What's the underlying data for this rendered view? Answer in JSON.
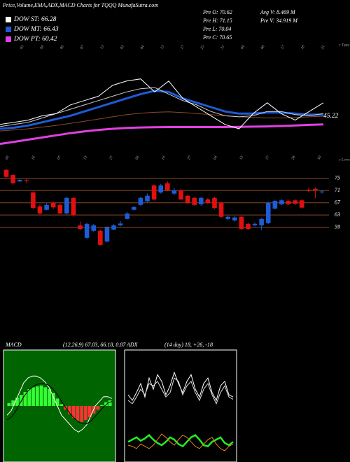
{
  "header": {
    "title": "Price,Volume,EMA,ADX,MACD Charts for TQQQ MunafaSutra.com",
    "legend": [
      {
        "label": "DOW ST: 66.28",
        "color": "#ffffff"
      },
      {
        "label": "DOW MT: 66.43",
        "color": "#1e5bd6"
      },
      {
        "label": "DOW PT: 60.42",
        "color": "#e040e0"
      }
    ],
    "info": [
      "Pre O: 70.62",
      "Pre H: 71.15",
      "Pre L: 70.04",
      "Pre C: 70.65",
      "Avg V: 8.469 M",
      "Pre V: 34.919 M"
    ]
  },
  "chart_data": [
    {
      "type": "line",
      "corner_label": "c Tqqq",
      "last_label": "45.22",
      "ylim": [
        30,
        80
      ],
      "date_labels": [
        "03",
        "04",
        "06",
        "07",
        "13",
        "03",
        "04",
        "13",
        "17",
        "25",
        "31",
        "04",
        "08",
        "17",
        "18",
        "21"
      ],
      "series": [
        {
          "color": "#e040e0",
          "values": [
            33,
            34,
            35,
            36,
            37,
            38,
            38.8,
            39.5,
            40,
            40.4,
            40.6,
            40.7,
            40.8,
            40.8,
            40.8,
            40.8,
            40.8,
            40.9,
            41,
            41.1,
            41.3,
            41.5,
            41.8,
            42
          ]
        },
        {
          "color": "#8b4a2a",
          "values": [
            39,
            39.5,
            40,
            40.8,
            41.5,
            42.5,
            43.5,
            44.5,
            45.5,
            46.5,
            47.2,
            47.6,
            47.8,
            47.5,
            47,
            46.5,
            46,
            45.5,
            45.2,
            45,
            45,
            45.2,
            45.5,
            45.8
          ]
        },
        {
          "color": "#1e5bd6",
          "values": [
            40,
            40.5,
            41.5,
            43,
            44.5,
            46,
            48,
            50,
            52,
            54,
            56,
            57.5,
            57,
            54,
            52,
            50,
            48,
            47,
            47,
            47.5,
            47.5,
            47,
            46.5,
            46.5
          ]
        },
        {
          "color": "#cccccc",
          "values": [
            41,
            42,
            43,
            45,
            47,
            49,
            51,
            53,
            55,
            57,
            58.5,
            59,
            56,
            53,
            51,
            48,
            46,
            45.5,
            46,
            48,
            48,
            46.5,
            46,
            47
          ]
        },
        {
          "color": "#ffffff",
          "values": [
            42,
            43,
            44,
            46,
            47,
            51,
            53,
            55,
            60,
            62,
            63,
            57,
            62,
            54,
            50,
            46,
            42,
            40,
            47,
            52,
            47,
            44,
            48,
            52
          ]
        }
      ]
    },
    {
      "type": "candlestick",
      "corner_label": "c Lowest",
      "ylim": [
        32.5,
        80.7
      ],
      "yticks": [
        75,
        71,
        67,
        63,
        59
      ],
      "grid_color": "#8b4a2a",
      "up_color": "#1e5bd6",
      "down_color": "#e01010",
      "date_labels": [
        "09",
        "16",
        "07",
        "13",
        "27",
        "04",
        "14",
        "27",
        "04",
        "13",
        "17",
        "28",
        "30"
      ],
      "open": [
        77.8,
        76.1,
        74.0,
        74.4,
        70.4,
        65.8,
        64.7,
        67.0,
        66.3,
        63.5,
        68.6,
        59.6,
        55.5,
        57.8,
        57.8,
        54.3,
        58.2,
        59.6,
        61.7,
        64.7,
        66.3,
        67.5,
        72.7,
        70.4,
        73.4,
        70.0,
        71.1,
        69.3,
        68.6,
        66.5,
        68.1,
        68.6,
        67.0,
        61.7,
        61.2,
        62.4,
        60.1,
        59.6,
        59.6,
        60.3,
        65.1,
        66.5,
        67.6,
        67.8,
        67.8,
        71.3,
        71.6,
        70.6
      ],
      "high": [
        78.2,
        76.5,
        74.8,
        75.0,
        70.8,
        66.5,
        66.8,
        67.4,
        66.8,
        69.0,
        69.0,
        60.8,
        60.5,
        60.0,
        58.2,
        59.3,
        60.0,
        61.0,
        64.0,
        66.0,
        69.0,
        70.0,
        73.0,
        73.2,
        74.0,
        71.8,
        71.6,
        69.8,
        69.0,
        69.0,
        68.6,
        69.0,
        67.4,
        62.8,
        62.6,
        62.8,
        60.5,
        60.6,
        62.0,
        67.4,
        68.0,
        68.2,
        68.0,
        68.2,
        68.2,
        72.0,
        72.0,
        71.2
      ],
      "low": [
        75.0,
        73.0,
        73.8,
        73.5,
        65.0,
        63.0,
        64.5,
        65.0,
        63.2,
        63.2,
        62.5,
        58.0,
        55.0,
        57.5,
        53.0,
        54.0,
        58.0,
        59.3,
        61.5,
        64.5,
        66.0,
        67.2,
        67.8,
        70.0,
        70.8,
        69.6,
        67.8,
        66.6,
        66.0,
        66.0,
        66.6,
        65.0,
        62.0,
        61.4,
        60.8,
        58.0,
        58.0,
        59.2,
        58.0,
        60.0,
        64.8,
        66.2,
        66.2,
        66.3,
        65.1,
        70.5,
        68.5,
        70.0
      ],
      "close": [
        75.5,
        73.4,
        74.5,
        74.2,
        65.3,
        63.5,
        66.3,
        65.5,
        63.5,
        68.6,
        63.0,
        58.4,
        60.1,
        59.6,
        53.2,
        58.9,
        59.6,
        60.2,
        63.5,
        65.6,
        68.6,
        69.3,
        68.1,
        72.7,
        71.1,
        71.1,
        68.1,
        67.0,
        66.3,
        68.6,
        67.0,
        65.3,
        62.4,
        62.4,
        62.2,
        58.4,
        58.4,
        60.1,
        61.7,
        67.0,
        67.6,
        67.8,
        66.5,
        66.7,
        65.4,
        71.1,
        71.2,
        70.7
      ]
    },
    {
      "type": "macd",
      "title": "MACD",
      "subtitle": "(12,26,9) 67.03, 66.18, 0.87",
      "ylim": [
        -6,
        6
      ],
      "background": "#006400",
      "up_color": "#33ff33",
      "down_color": "#ff3333",
      "histogram": [
        0.3,
        0.6,
        0.9,
        1.2,
        1.5,
        1.8,
        2.0,
        2.1,
        2.2,
        2.0,
        1.8,
        1.4,
        0.8,
        0.2,
        -0.4,
        -0.9,
        -1.3,
        -1.6,
        -1.7,
        -1.5,
        -1.2,
        -0.8,
        -0.4,
        0.1,
        0.4,
        0.6
      ],
      "series": [
        {
          "color": "#ffffff",
          "values": [
            -1,
            -0.5,
            0.5,
            1.5,
            2.5,
            3,
            3.2,
            3.2,
            3,
            2.6,
            2,
            1,
            0,
            -1,
            -1.5,
            -2,
            -2.5,
            -2.8,
            -2.5,
            -2,
            -1,
            0,
            0.5,
            1,
            1,
            0.8
          ]
        },
        {
          "color": "#000000",
          "values": [
            -1.5,
            -1.2,
            -0.6,
            0.2,
            1,
            1.6,
            2,
            2.3,
            2.4,
            2.4,
            2.2,
            1.8,
            1.2,
            0.5,
            -0.2,
            -0.8,
            -1.3,
            -1.7,
            -1.9,
            -1.9,
            -1.6,
            -1.1,
            -0.6,
            -0.1,
            0.3,
            0.5
          ]
        }
      ]
    },
    {
      "type": "adx",
      "title": "ADX",
      "subtitle": "(14 day) 18, +26, -18",
      "ylim": [
        0,
        100
      ],
      "background": "#000000",
      "series": [
        {
          "color": "#ffffff",
          "values": [
            60,
            55,
            62,
            70,
            58,
            75,
            65,
            78,
            72,
            60,
            68,
            80,
            70,
            62,
            72,
            78,
            65,
            58,
            70,
            75,
            62,
            55,
            68,
            72,
            60,
            58
          ]
        },
        {
          "color": "#dddddd",
          "values": [
            55,
            52,
            58,
            65,
            60,
            70,
            68,
            72,
            65,
            58,
            62,
            75,
            72,
            60,
            68,
            72,
            62,
            55,
            65,
            70,
            60,
            52,
            62,
            68,
            58,
            56
          ]
        },
        {
          "color": "#22ee22",
          "values": [
            18,
            20,
            22,
            19,
            21,
            24,
            20,
            17,
            15,
            18,
            22,
            20,
            16,
            14,
            18,
            22,
            24,
            20,
            15,
            14,
            18,
            20,
            22,
            17,
            15,
            18
          ]
        },
        {
          "color": "#e08020",
          "values": [
            15,
            14,
            12,
            16,
            14,
            12,
            15,
            20,
            25,
            22,
            18,
            15,
            20,
            24,
            22,
            18,
            14,
            12,
            16,
            20,
            22,
            16,
            12,
            10,
            14,
            16
          ]
        }
      ]
    }
  ]
}
